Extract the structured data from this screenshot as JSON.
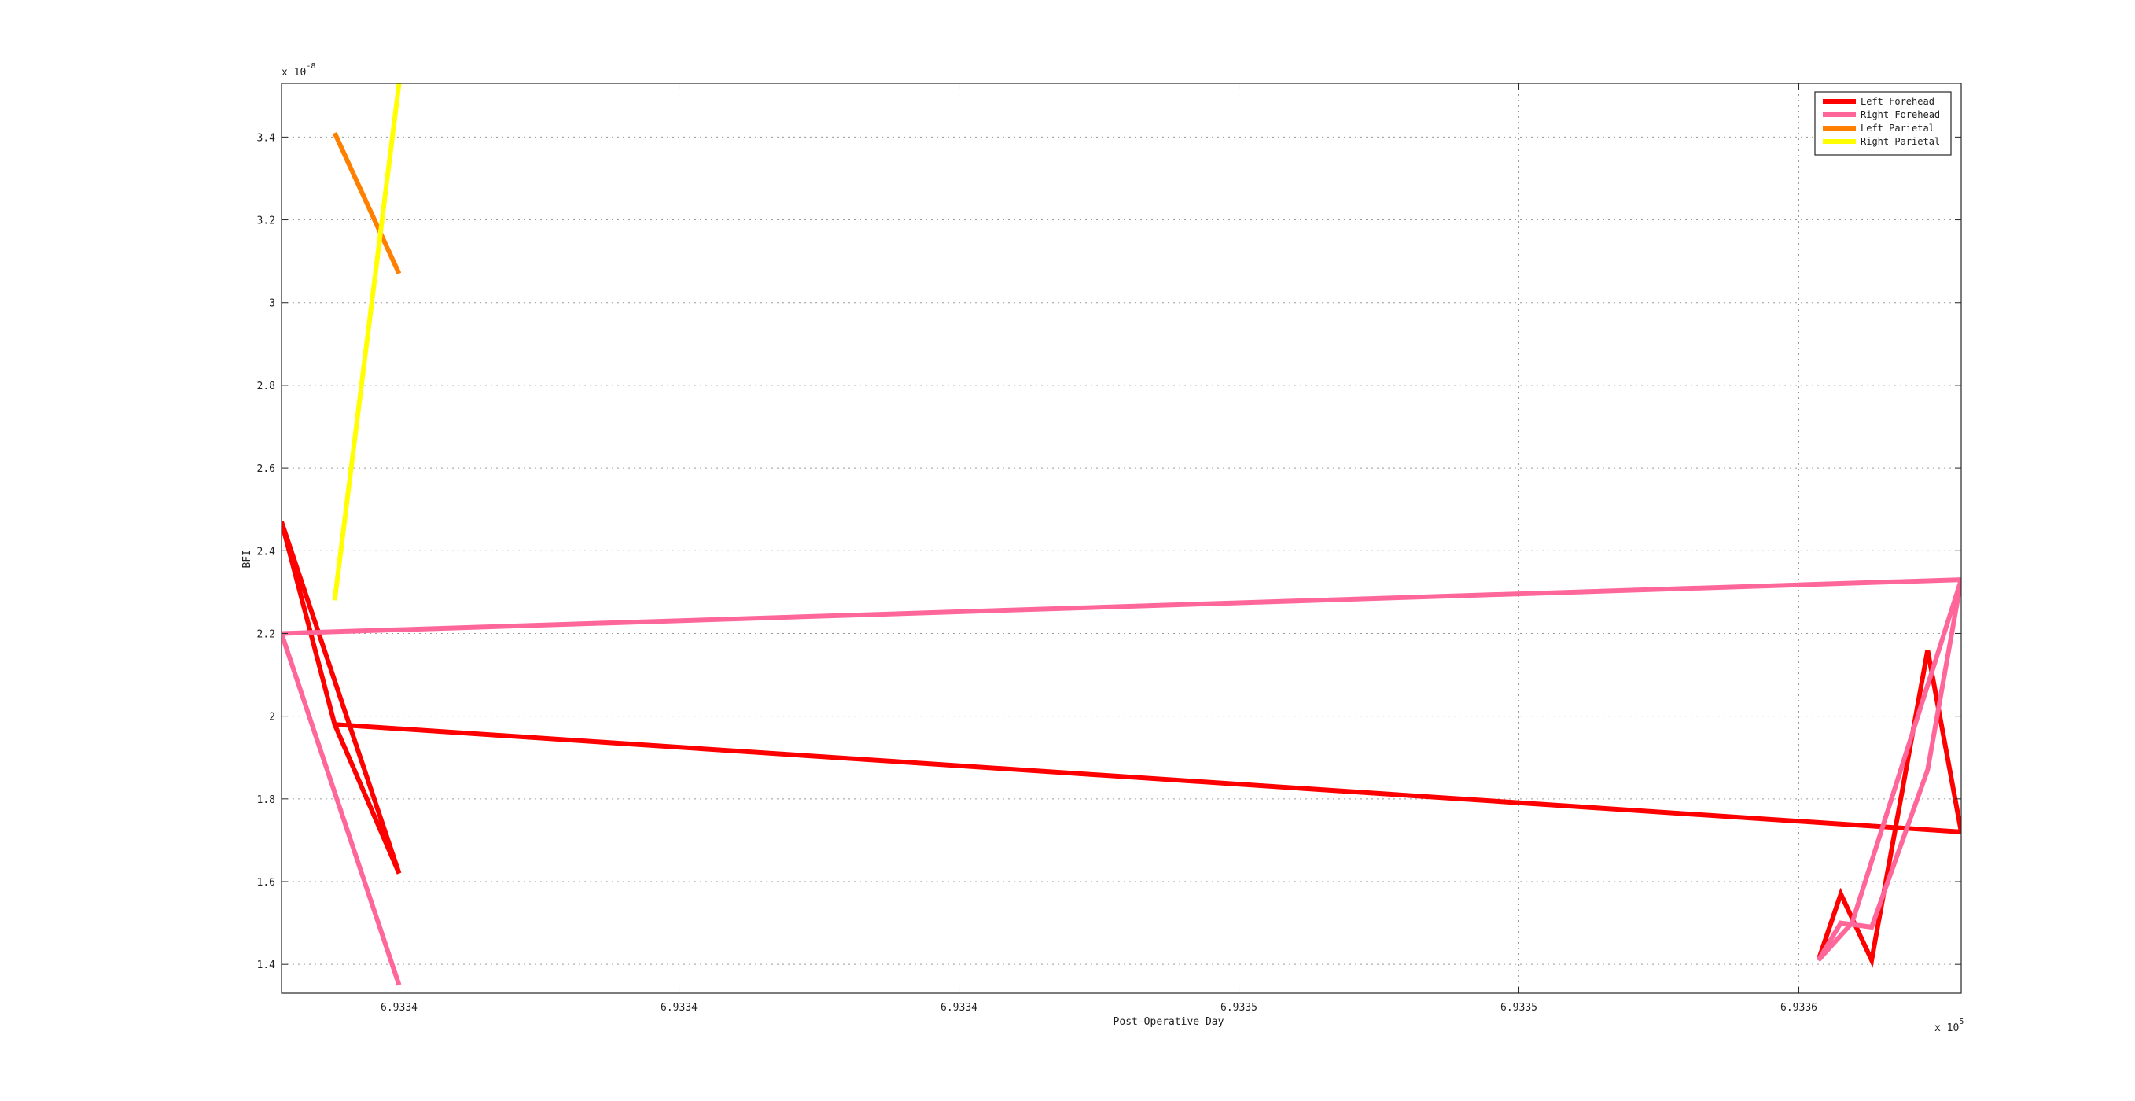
{
  "chart_data": {
    "type": "line",
    "title": "",
    "xlabel": "Post-Operative Day",
    "ylabel": "BFI",
    "x_exponent_label": "x 10",
    "x_exponent_power": "5",
    "y_exponent_label": "x 10",
    "y_exponent_power": "-8",
    "xlim": [
      0,
      6
    ],
    "ylim": [
      1.33,
      3.53
    ],
    "x_ticks": [
      {
        "pos": 0.42,
        "label": "6.9334"
      },
      {
        "pos": 1.42,
        "label": "6.9334"
      },
      {
        "pos": 2.42,
        "label": "6.9334"
      },
      {
        "pos": 3.42,
        "label": "6.9335"
      },
      {
        "pos": 4.42,
        "label": "6.9335"
      },
      {
        "pos": 5.42,
        "label": "6.9336"
      }
    ],
    "y_ticks": [
      {
        "value": 1.4,
        "label": "1.4"
      },
      {
        "value": 1.6,
        "label": "1.6"
      },
      {
        "value": 1.8,
        "label": "1.8"
      },
      {
        "value": 2.0,
        "label": "2"
      },
      {
        "value": 2.2,
        "label": "2.2"
      },
      {
        "value": 2.4,
        "label": "2.4"
      },
      {
        "value": 2.6,
        "label": "2.6"
      },
      {
        "value": 2.8,
        "label": "2.8"
      },
      {
        "value": 3.0,
        "label": "3"
      },
      {
        "value": 3.2,
        "label": "3.2"
      },
      {
        "value": 3.4,
        "label": "3.4"
      }
    ],
    "grid": true,
    "legend_position": "top-right",
    "series": [
      {
        "name": "Left Forehead",
        "color": "#ff0000",
        "points": [
          [
            0.19,
            1.98
          ],
          [
            0.42,
            1.62
          ],
          [
            0.0,
            2.47
          ],
          [
            0.19,
            1.98
          ],
          [
            6.0,
            1.72
          ],
          [
            5.88,
            2.16
          ],
          [
            5.68,
            1.41
          ],
          [
            5.57,
            1.57
          ],
          [
            5.49,
            1.41
          ]
        ]
      },
      {
        "name": "Right Forehead",
        "color": "#ff6699",
        "points": [
          [
            0.0,
            2.2
          ],
          [
            0.42,
            1.35
          ],
          [
            0.0,
            2.2
          ],
          [
            6.0,
            2.33
          ],
          [
            5.61,
            1.5
          ],
          [
            5.49,
            1.41
          ],
          [
            5.57,
            1.5
          ],
          [
            5.68,
            1.49
          ],
          [
            5.88,
            1.87
          ],
          [
            6.0,
            2.33
          ]
        ]
      },
      {
        "name": "Left Parietal",
        "color": "#ff8000",
        "points": [
          [
            0.19,
            3.41
          ],
          [
            0.42,
            3.07
          ]
        ]
      },
      {
        "name": "Right Parietal",
        "color": "#ffff00",
        "points": [
          [
            0.19,
            2.28
          ],
          [
            0.42,
            3.53
          ]
        ]
      }
    ]
  }
}
